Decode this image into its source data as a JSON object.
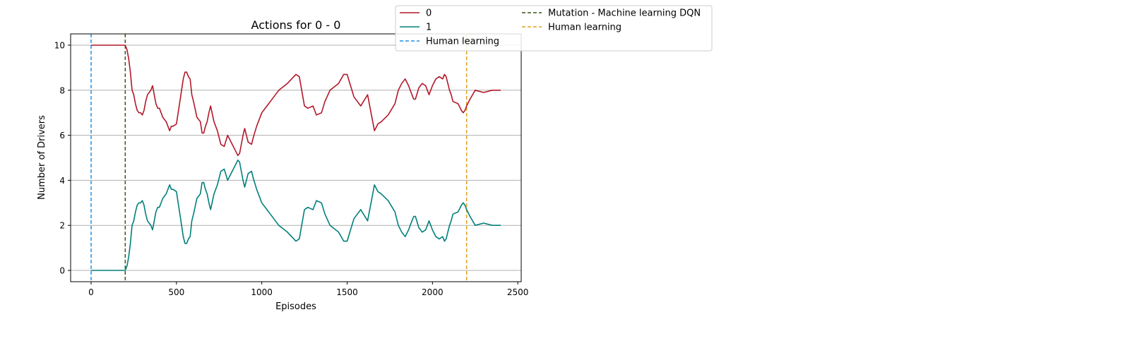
{
  "chart_data": {
    "type": "line",
    "title": "Actions for 0 - 0",
    "xlabel": "Episodes",
    "ylabel": "Number of Drivers",
    "xlim": [
      -120,
      2520
    ],
    "ylim": [
      -0.5,
      10.5
    ],
    "xticks": [
      0,
      500,
      1000,
      1500,
      2000,
      2500
    ],
    "yticks": [
      0,
      2,
      4,
      6,
      8,
      10
    ],
    "grid": "horizontal",
    "legend_placement": "top-right, outside axes",
    "series": [
      {
        "name": "0",
        "color": "#b2182b",
        "x": [
          0,
          200,
          210,
          220,
          230,
          240,
          250,
          260,
          270,
          280,
          290,
          300,
          310,
          320,
          330,
          340,
          350,
          360,
          370,
          380,
          390,
          400,
          420,
          440,
          460,
          470,
          480,
          500,
          520,
          540,
          550,
          560,
          570,
          580,
          590,
          600,
          620,
          640,
          650,
          660,
          670,
          680,
          690,
          700,
          720,
          740,
          760,
          780,
          800,
          820,
          840,
          860,
          870,
          880,
          890,
          900,
          920,
          940,
          950,
          970,
          1000,
          1050,
          1100,
          1150,
          1200,
          1220,
          1250,
          1270,
          1300,
          1320,
          1350,
          1370,
          1400,
          1450,
          1480,
          1500,
          1540,
          1580,
          1620,
          1660,
          1680,
          1700,
          1740,
          1780,
          1800,
          1820,
          1840,
          1860,
          1880,
          1890,
          1900,
          1920,
          1940,
          1960,
          1980,
          2000,
          2020,
          2040,
          2060,
          2070,
          2080,
          2090,
          2100,
          2110,
          2120,
          2150,
          2170,
          2180,
          2190,
          2200,
          2220,
          2250,
          2300,
          2350,
          2400
        ],
        "y": [
          10,
          10,
          9.8,
          9.4,
          8.8,
          8.0,
          7.8,
          7.4,
          7.1,
          7.0,
          7.0,
          6.9,
          7.1,
          7.5,
          7.8,
          7.9,
          8.0,
          8.2,
          7.8,
          7.4,
          7.2,
          7.2,
          6.8,
          6.6,
          6.2,
          6.4,
          6.4,
          6.5,
          7.5,
          8.5,
          8.8,
          8.8,
          8.6,
          8.5,
          7.8,
          7.5,
          6.8,
          6.6,
          6.1,
          6.1,
          6.4,
          6.6,
          7.0,
          7.3,
          6.6,
          6.2,
          5.6,
          5.5,
          6.0,
          5.7,
          5.4,
          5.1,
          5.2,
          5.6,
          6.0,
          6.3,
          5.7,
          5.6,
          5.9,
          6.4,
          7.0,
          7.5,
          8.0,
          8.3,
          8.7,
          8.6,
          7.3,
          7.2,
          7.3,
          6.9,
          7.0,
          7.5,
          8.0,
          8.3,
          8.7,
          8.7,
          7.7,
          7.3,
          7.8,
          6.2,
          6.5,
          6.6,
          6.9,
          7.4,
          8.0,
          8.3,
          8.5,
          8.2,
          7.8,
          7.6,
          7.6,
          8.1,
          8.3,
          8.2,
          7.8,
          8.2,
          8.5,
          8.6,
          8.5,
          8.7,
          8.6,
          8.3,
          8.0,
          7.8,
          7.5,
          7.4,
          7.1,
          7.0,
          7.1,
          7.3,
          7.6,
          8.0,
          7.9,
          8.0,
          8.0
        ]
      },
      {
        "name": "1",
        "color": "#00807a",
        "x": [
          0,
          200,
          210,
          220,
          230,
          240,
          250,
          260,
          270,
          280,
          290,
          300,
          310,
          320,
          330,
          340,
          350,
          360,
          370,
          380,
          390,
          400,
          420,
          440,
          460,
          470,
          480,
          500,
          520,
          540,
          550,
          560,
          570,
          580,
          590,
          600,
          620,
          640,
          650,
          660,
          670,
          680,
          690,
          700,
          720,
          740,
          760,
          780,
          800,
          820,
          840,
          860,
          870,
          880,
          890,
          900,
          920,
          940,
          950,
          970,
          1000,
          1050,
          1100,
          1150,
          1200,
          1220,
          1250,
          1270,
          1300,
          1320,
          1350,
          1370,
          1400,
          1450,
          1480,
          1500,
          1540,
          1580,
          1620,
          1660,
          1680,
          1700,
          1740,
          1780,
          1800,
          1820,
          1840,
          1860,
          1880,
          1890,
          1900,
          1920,
          1940,
          1960,
          1980,
          2000,
          2020,
          2040,
          2060,
          2070,
          2080,
          2090,
          2100,
          2110,
          2120,
          2150,
          2170,
          2180,
          2190,
          2200,
          2220,
          2250,
          2300,
          2350,
          2400
        ],
        "y": [
          0,
          0,
          0.2,
          0.6,
          1.2,
          2.0,
          2.2,
          2.6,
          2.9,
          3.0,
          3.0,
          3.1,
          2.9,
          2.5,
          2.2,
          2.1,
          2.0,
          1.8,
          2.2,
          2.6,
          2.8,
          2.8,
          3.2,
          3.4,
          3.8,
          3.6,
          3.6,
          3.5,
          2.5,
          1.5,
          1.2,
          1.2,
          1.4,
          1.5,
          2.2,
          2.5,
          3.2,
          3.4,
          3.9,
          3.9,
          3.6,
          3.4,
          3.0,
          2.7,
          3.4,
          3.8,
          4.4,
          4.5,
          4.0,
          4.3,
          4.6,
          4.9,
          4.8,
          4.4,
          4.0,
          3.7,
          4.3,
          4.4,
          4.1,
          3.6,
          3.0,
          2.5,
          2.0,
          1.7,
          1.3,
          1.4,
          2.7,
          2.8,
          2.7,
          3.1,
          3.0,
          2.5,
          2.0,
          1.7,
          1.3,
          1.3,
          2.3,
          2.7,
          2.2,
          3.8,
          3.5,
          3.4,
          3.1,
          2.6,
          2.0,
          1.7,
          1.5,
          1.8,
          2.2,
          2.4,
          2.4,
          1.9,
          1.7,
          1.8,
          2.2,
          1.8,
          1.5,
          1.4,
          1.5,
          1.3,
          1.4,
          1.7,
          2.0,
          2.2,
          2.5,
          2.6,
          2.9,
          3.0,
          2.9,
          2.7,
          2.4,
          2.0,
          2.1,
          2.0,
          2.0
        ]
      }
    ],
    "vlines": [
      {
        "name": "Human learning",
        "x": 0,
        "color": "#1f8fe6"
      },
      {
        "name": "Mutation - Machine learning DQN",
        "x": 200,
        "color": "#3b5220"
      },
      {
        "name": "Human learning",
        "x": 2200,
        "color": "#e0a020"
      }
    ],
    "legend": {
      "entries": [
        {
          "label": "0",
          "style": "solid",
          "color": "#b2182b"
        },
        {
          "label": "1",
          "style": "solid",
          "color": "#00807a"
        },
        {
          "label": "Human learning",
          "style": "dashed",
          "color": "#1f8fe6"
        },
        {
          "label": "Mutation - Machine learning DQN",
          "style": "dashed",
          "color": "#3b5220"
        },
        {
          "label": "Human learning",
          "style": "dashed",
          "color": "#e0a020"
        }
      ]
    }
  }
}
